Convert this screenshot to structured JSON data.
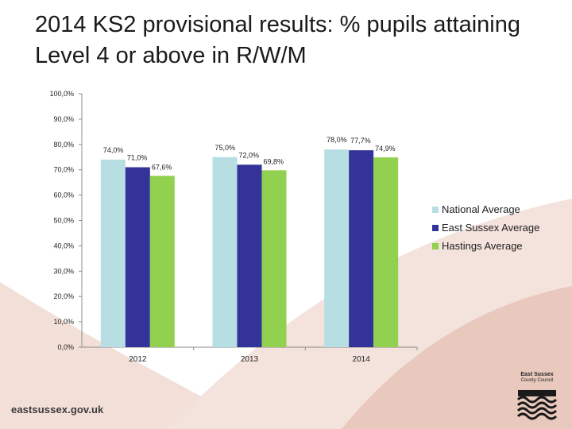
{
  "slide": {
    "title": "2014 KS2 provisional results: % pupils attaining Level 4 or above in R/W/M",
    "footer_url": "eastsussex.gov.uk",
    "logo_name": "East Sussex",
    "logo_sub": "County Council"
  },
  "chart_data": {
    "type": "bar",
    "title": "",
    "xlabel": "",
    "ylabel": "",
    "categories": [
      "2012",
      "2013",
      "2014"
    ],
    "ylim": [
      0,
      100
    ],
    "yticks": [
      "0,0%",
      "10,0%",
      "20,0%",
      "30,0%",
      "40,0%",
      "50,0%",
      "60,0%",
      "70,0%",
      "80,0%",
      "90,0%",
      "100,0%"
    ],
    "grid": false,
    "legend_position": "right",
    "series": [
      {
        "name": "National Average",
        "color": "#b7dee3",
        "values": [
          74.0,
          75.0,
          78.0
        ],
        "labels": [
          "74,0%",
          "75,0%",
          "78,0%"
        ]
      },
      {
        "name": "East Sussex Average",
        "color": "#333399",
        "values": [
          71.0,
          72.0,
          77.7
        ],
        "labels": [
          "71,0%",
          "72,0%",
          "77,7%"
        ]
      },
      {
        "name": "Hastings Average",
        "color": "#92d050",
        "values": [
          67.6,
          69.8,
          74.9
        ],
        "labels": [
          "67,6%",
          "69,8%",
          "74,9%"
        ]
      }
    ]
  }
}
